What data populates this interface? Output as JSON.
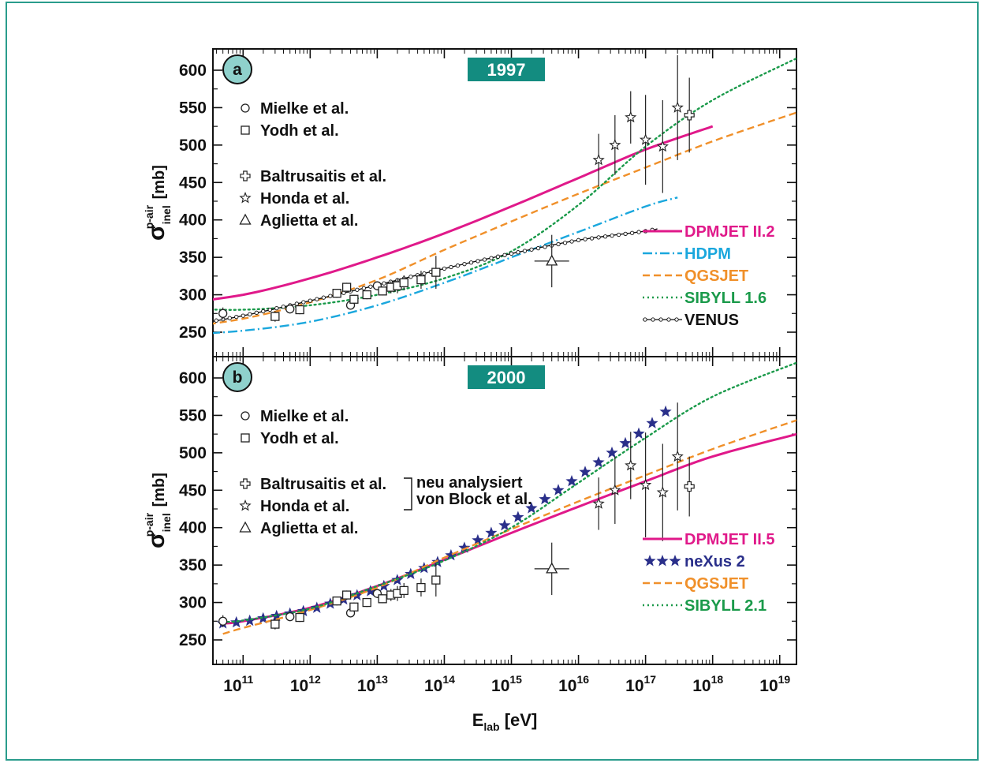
{
  "chart_data": [
    {
      "panel_label": "a",
      "year_badge": "1997",
      "type": "line",
      "x_scale": "log",
      "x_unit_label": "E_lab [eV]",
      "ylim": [
        225,
        625
      ],
      "ylabel": {
        "symbol": "σ",
        "sup": "p-air",
        "sub": "inel",
        "unit": "[mb]"
      },
      "yticks": [
        250,
        300,
        350,
        400,
        450,
        500,
        550,
        600
      ],
      "data_legend": [
        {
          "marker": "circle",
          "label": "Mielke et al."
        },
        {
          "marker": "square",
          "label": "Yodh et al."
        },
        {
          "marker": "cross",
          "label": "Baltrusaitis et al."
        },
        {
          "marker": "star",
          "label": "Honda et al."
        },
        {
          "marker": "triangle",
          "label": "Aglietta et al."
        }
      ],
      "series": [
        {
          "name": "DPMJET II.2",
          "color": "#e0198a",
          "style": "solid",
          "points": [
            [
              10000000000.0,
              288
            ],
            [
              100000000000.0,
              300
            ],
            [
              1000000000000.0,
              322
            ],
            [
              10000000000000.0,
              350
            ],
            [
              100000000000000.0,
              382
            ],
            [
              1000000000000000.0,
              418
            ],
            [
              1e+16,
              456
            ],
            [
              1e+17,
              494
            ],
            [
              1e+18,
              525
            ]
          ]
        },
        {
          "name": "HDPM",
          "color": "#1aa7dd",
          "style": "dashdot",
          "points": [
            [
              10000000000.0,
              246
            ],
            [
              100000000000.0,
              252
            ],
            [
              1000000000000.0,
              264
            ],
            [
              10000000000000.0,
              286
            ],
            [
              100000000000000.0,
              316
            ],
            [
              1000000000000000.0,
              350
            ],
            [
              1e+16,
              384
            ],
            [
              1e+17,
              418
            ],
            [
              3e+17,
              430
            ]
          ]
        },
        {
          "name": "QGSJET",
          "color": "#f0902a",
          "style": "dashed",
          "points": [
            [
              10000000000.0,
              255
            ],
            [
              100000000000.0,
              268
            ],
            [
              1000000000000.0,
              290
            ],
            [
              10000000000000.0,
              320
            ],
            [
              100000000000000.0,
              360
            ],
            [
              1000000000000000.0,
              398
            ],
            [
              1e+16,
              435
            ],
            [
              1e+17,
              470
            ],
            [
              1e+18,
              505
            ],
            [
              2e+19,
              545
            ]
          ]
        },
        {
          "name": "SIBYLL 1.6",
          "color": "#1a9a4a",
          "style": "dotted",
          "points": [
            [
              20000000000.0,
              281
            ],
            [
              100000000000.0,
              280
            ],
            [
              1000000000000.0,
              286
            ],
            [
              10000000000000.0,
              300
            ],
            [
              100000000000000.0,
              322
            ],
            [
              1000000000000000.0,
              358
            ],
            [
              1e+16,
              420
            ],
            [
              1e+17,
              498
            ],
            [
              1e+18,
              560
            ],
            [
              2e+19,
              618
            ]
          ]
        },
        {
          "name": "VENUS",
          "color": "#111111",
          "style": "circles",
          "points": [
            [
              10000000000.0,
              256
            ],
            [
              100000000000.0,
              272
            ],
            [
              1000000000000.0,
              292
            ],
            [
              10000000000000.0,
              313
            ],
            [
              100000000000000.0,
              335
            ],
            [
              1000000000000000.0,
              355
            ],
            [
              1e+16,
              373
            ],
            [
              1e+17,
              385
            ],
            [
              1.5e+17,
              388
            ]
          ]
        }
      ],
      "measurements": [
        {
          "set": "Mielke et al.",
          "marker": "circle",
          "points": [
            [
              50000000000.0,
              275,
              8
            ],
            [
              500000000000.0,
              281,
              6
            ],
            [
              4000000000000.0,
              286,
              6
            ],
            [
              10000000000000.0,
              312,
              6
            ]
          ]
        },
        {
          "set": "Yodh et al.",
          "marker": "square",
          "points": [
            [
              300000000000.0,
              271,
              7
            ],
            [
              700000000000.0,
              280,
              6
            ],
            [
              2500000000000.0,
              302,
              6
            ],
            [
              3500000000000.0,
              310,
              6
            ],
            [
              4500000000000.0,
              294,
              6
            ],
            [
              7000000000000.0,
              300,
              6
            ],
            [
              12000000000000.0,
              305,
              6
            ],
            [
              16000000000000.0,
              310,
              8
            ],
            [
              20000000000000.0,
              312,
              10
            ],
            [
              25000000000000.0,
              316,
              10
            ],
            [
              45000000000000.0,
              320,
              12
            ],
            [
              75000000000000.0,
              330,
              22
            ]
          ]
        },
        {
          "set": "Baltrusaitis et al.",
          "marker": "cross",
          "points": [
            [
              4.5e+17,
              540,
              50
            ]
          ]
        },
        {
          "set": "Honda et al.",
          "marker": "star",
          "points": [
            [
              2e+16,
              480,
              35
            ],
            [
              3.5e+16,
              500,
              40
            ],
            [
              6e+16,
              537,
              35
            ],
            [
              1e+17,
              507,
              60
            ],
            [
              1.8e+17,
              498,
              62
            ],
            [
              3e+17,
              550,
              70
            ]
          ]
        },
        {
          "set": "Aglietta et al.",
          "marker": "triangle",
          "points": [
            [
              4000000000000000.0,
              345,
              35
            ]
          ]
        }
      ]
    },
    {
      "panel_label": "b",
      "year_badge": "2000",
      "type": "line",
      "x_scale": "log",
      "x_label": "E",
      "x_label_sub": "lab",
      "x_label_unit": "[eV]",
      "xticks": [
        {
          "value": 100000000000.0,
          "label": "11"
        },
        {
          "value": 1000000000000.0,
          "label": "12"
        },
        {
          "value": 10000000000000.0,
          "label": "13"
        },
        {
          "value": 100000000000000.0,
          "label": "14"
        },
        {
          "value": 1000000000000000.0,
          "label": "15"
        },
        {
          "value": 1e+16,
          "label": "16"
        },
        {
          "value": 1e+17,
          "label": "17"
        },
        {
          "value": 1e+18,
          "label": "18"
        },
        {
          "value": 1e+19,
          "label": "19"
        }
      ],
      "xtick_base": "10",
      "ylim": [
        225,
        625
      ],
      "ylabel": {
        "symbol": "σ",
        "sup": "p-air",
        "sub": "inel",
        "unit": "[mb]"
      },
      "yticks": [
        250,
        300,
        350,
        400,
        450,
        500,
        550,
        600
      ],
      "data_legend": [
        {
          "marker": "circle",
          "label": "Mielke et al."
        },
        {
          "marker": "square",
          "label": "Yodh et al."
        },
        {
          "marker": "cross",
          "label": "Baltrusaitis et al."
        },
        {
          "marker": "star",
          "label": "Honda et al."
        },
        {
          "marker": "triangle",
          "label": "Aglietta et al."
        }
      ],
      "reanalysis_note": [
        "neu analysiert",
        "von Block et al."
      ],
      "series": [
        {
          "name": "DPMJET II.5",
          "color": "#e0198a",
          "style": "solid",
          "points": [
            [
              50000000000.0,
              272
            ],
            [
              100000000000.0,
              275
            ],
            [
              1000000000000.0,
              293
            ],
            [
              10000000000000.0,
              322
            ],
            [
              100000000000000.0,
              357
            ],
            [
              1000000000000000.0,
              393
            ],
            [
              1e+16,
              428
            ],
            [
              1e+17,
              462
            ],
            [
              1e+18,
              495
            ],
            [
              2e+19,
              526
            ]
          ]
        },
        {
          "name": "neXus 2",
          "color": "#2a2f8a",
          "style": "stars",
          "points": [
            [
              50000000000.0,
              272
            ],
            [
              100000000000.0,
              274
            ],
            [
              1000000000000.0,
              290
            ],
            [
              10000000000000.0,
              318
            ],
            [
              100000000000000.0,
              358
            ],
            [
              1000000000000000.0,
              408
            ],
            [
              1e+16,
              468
            ],
            [
              1e+17,
              532
            ],
            [
              2e+17,
              555
            ]
          ]
        },
        {
          "name": "QGSJET",
          "color": "#f0902a",
          "style": "dashed",
          "points": [
            [
              50000000000.0,
              258
            ],
            [
              100000000000.0,
              266
            ],
            [
              1000000000000.0,
              290
            ],
            [
              10000000000000.0,
              320
            ],
            [
              100000000000000.0,
              360
            ],
            [
              1000000000000000.0,
              398
            ],
            [
              1e+16,
              435
            ],
            [
              1e+17,
              470
            ],
            [
              1e+18,
              505
            ],
            [
              2e+19,
              545
            ]
          ]
        },
        {
          "name": "SIBYLL 2.1",
          "color": "#1a9a4a",
          "style": "dotted",
          "points": [
            [
              50000000000.0,
              274
            ],
            [
              100000000000.0,
              276
            ],
            [
              1000000000000.0,
              292
            ],
            [
              10000000000000.0,
              322
            ],
            [
              100000000000000.0,
              356
            ],
            [
              1000000000000000.0,
              400
            ],
            [
              1e+16,
              460
            ],
            [
              1e+17,
              520
            ],
            [
              1e+18,
              575
            ],
            [
              2e+19,
              622
            ]
          ]
        }
      ],
      "measurements": [
        {
          "set": "Mielke et al.",
          "marker": "circle",
          "points": [
            [
              50000000000.0,
              275,
              8
            ],
            [
              500000000000.0,
              281,
              6
            ],
            [
              4000000000000.0,
              286,
              6
            ],
            [
              10000000000000.0,
              312,
              6
            ]
          ]
        },
        {
          "set": "Yodh et al.",
          "marker": "square",
          "points": [
            [
              300000000000.0,
              271,
              7
            ],
            [
              700000000000.0,
              280,
              6
            ],
            [
              2500000000000.0,
              302,
              6
            ],
            [
              3500000000000.0,
              310,
              6
            ],
            [
              4500000000000.0,
              294,
              6
            ],
            [
              7000000000000.0,
              300,
              6
            ],
            [
              12000000000000.0,
              305,
              6
            ],
            [
              16000000000000.0,
              310,
              8
            ],
            [
              20000000000000.0,
              312,
              10
            ],
            [
              25000000000000.0,
              316,
              10
            ],
            [
              45000000000000.0,
              320,
              12
            ],
            [
              75000000000000.0,
              330,
              22
            ]
          ]
        },
        {
          "set": "Baltrusaitis et al.",
          "marker": "cross",
          "points": [
            [
              4.5e+17,
              455,
              40
            ]
          ]
        },
        {
          "set": "Honda et al.",
          "marker": "star",
          "points": [
            [
              2e+16,
              432,
              35
            ],
            [
              3.5e+16,
              450,
              45
            ],
            [
              6e+16,
              483,
              45
            ],
            [
              1e+17,
              457,
              70
            ],
            [
              1.8e+17,
              447,
              65
            ],
            [
              3e+17,
              495,
              72
            ]
          ]
        },
        {
          "set": "Aglietta et al.",
          "marker": "triangle",
          "points": [
            [
              4000000000000000.0,
              345,
              35
            ]
          ]
        }
      ]
    }
  ]
}
